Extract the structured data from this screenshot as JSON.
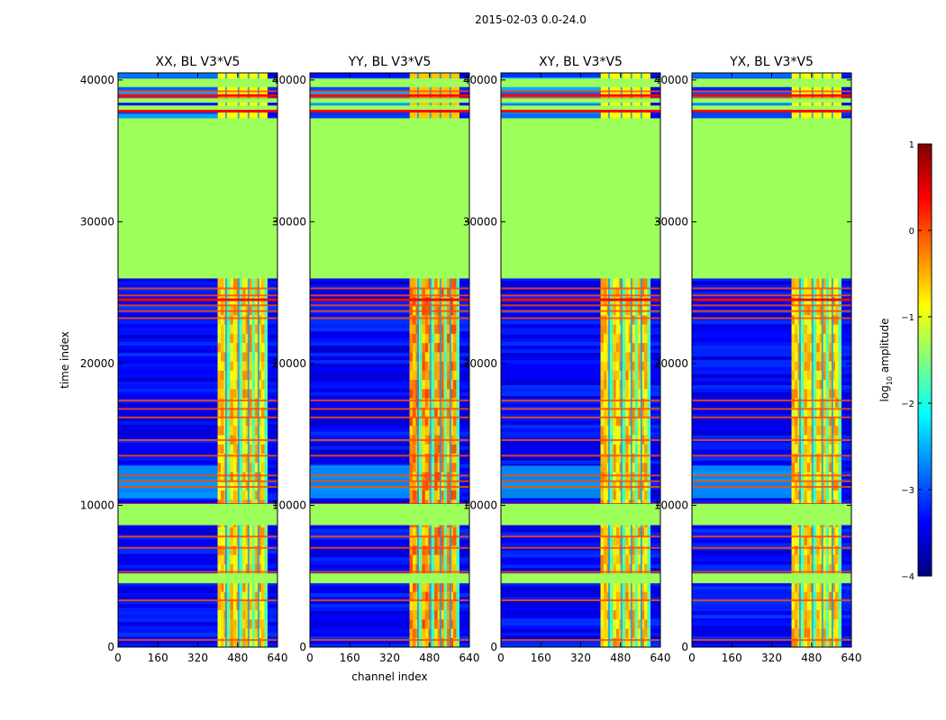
{
  "figure": {
    "suptitle": "2015-02-03 0.0-24.0"
  },
  "chart_data": [
    {
      "type": "heatmap",
      "title": "XX, BL V3*V5",
      "xlabel": "",
      "ylabel": "time index",
      "xlim": [
        0,
        640
      ],
      "ylim": [
        0,
        40500
      ],
      "xticks": [
        "0",
        "160",
        "320",
        "480",
        "640"
      ],
      "yticks": [
        "0",
        "10000",
        "20000",
        "30000",
        "40000"
      ],
      "band_start_channel": 400,
      "band_end_channel": 600
    },
    {
      "type": "heatmap",
      "title": "YY, BL V3*V5",
      "xlabel": "channel index",
      "ylabel": "",
      "xlim": [
        0,
        640
      ],
      "ylim": [
        0,
        40500
      ],
      "xticks": [
        "0",
        "160",
        "320",
        "480",
        "640"
      ],
      "yticks": [
        "0",
        "10000",
        "20000",
        "30000",
        "40000"
      ],
      "band_start_channel": 400,
      "band_end_channel": 600
    },
    {
      "type": "heatmap",
      "title": "XY, BL V3*V5",
      "xlabel": "",
      "ylabel": "",
      "xlim": [
        0,
        640
      ],
      "ylim": [
        0,
        40500
      ],
      "xticks": [
        "0",
        "160",
        "320",
        "480",
        "640"
      ],
      "yticks": [
        "0",
        "10000",
        "20000",
        "30000",
        "40000"
      ],
      "band_start_channel": 400,
      "band_end_channel": 600
    },
    {
      "type": "heatmap",
      "title": "YX, BL V3*V5",
      "xlabel": "",
      "ylabel": "",
      "xlim": [
        0,
        640
      ],
      "ylim": [
        0,
        40500
      ],
      "xticks": [
        "0",
        "160",
        "320",
        "480",
        "640"
      ],
      "yticks": [
        "0",
        "10000",
        "20000",
        "30000",
        "40000"
      ],
      "band_start_channel": 400,
      "band_end_channel": 600
    }
  ],
  "rows": {
    "flagged_block": [
      26000,
      37300
    ],
    "flagged_band_low": [
      8600,
      10100
    ],
    "flagged_stripe_low": [
      4500,
      5200
    ],
    "noisy_top_start": 37300,
    "orange_lines": [
      500,
      3300,
      4800,
      5300,
      7000,
      7800,
      9800,
      11300,
      11700,
      12100,
      13500,
      14600,
      16200,
      16800,
      17400,
      23200,
      23700,
      24100,
      24800,
      25300,
      38000,
      38700,
      39200
    ],
    "red_lines": [
      10050,
      24500,
      37800,
      38900
    ]
  },
  "colorbar": {
    "label": "log10 amplitude",
    "label_main": "log",
    "label_sub": "10",
    "label_rest": " amplitude",
    "range": [
      -4,
      1
    ],
    "ticks": [
      "1",
      "0",
      "−1",
      "−2",
      "−3",
      "−4"
    ],
    "colormap": "jet",
    "flag_value": -1.35
  },
  "colors": {
    "flag": "#9cff5a",
    "jet_stops": [
      "#00007f",
      "#0000ff",
      "#007fff",
      "#00ffff",
      "#7fff7f",
      "#ffff00",
      "#ff7f00",
      "#ff0000",
      "#7f0000"
    ]
  }
}
